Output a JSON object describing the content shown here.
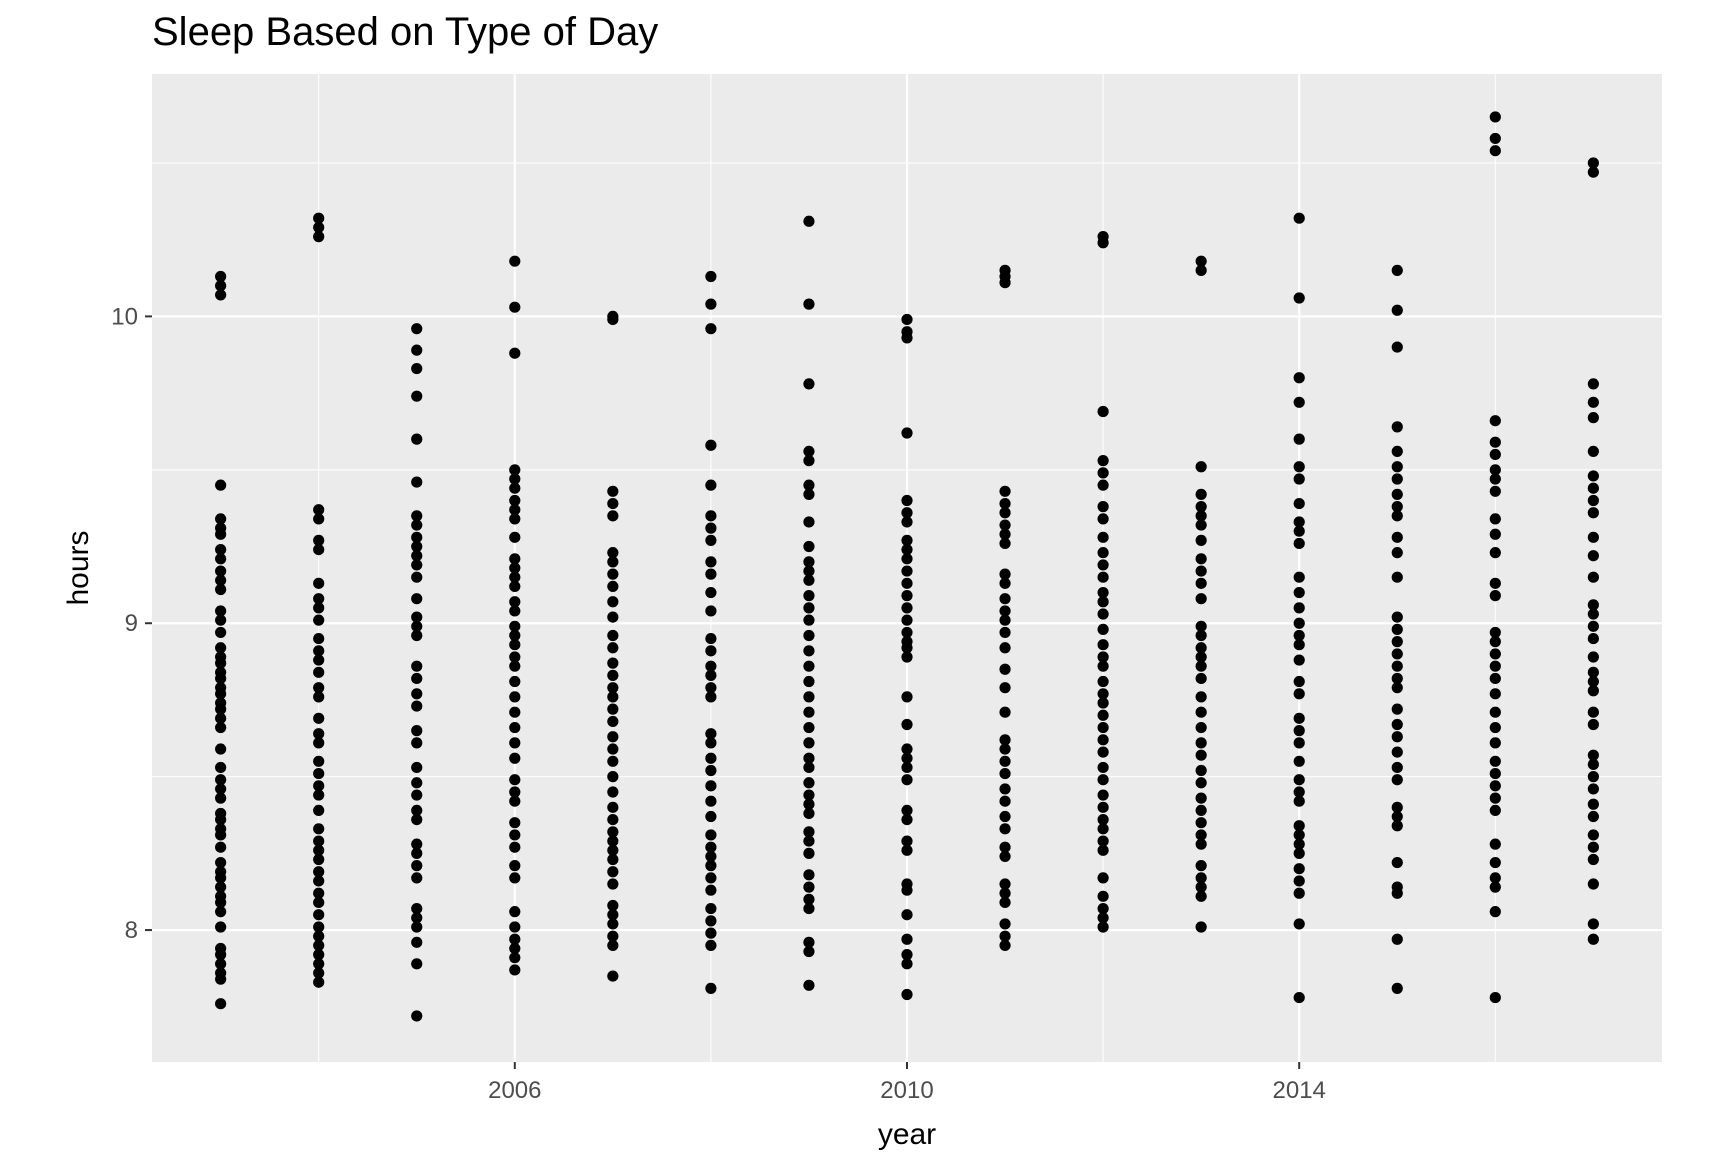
{
  "chart_data": {
    "type": "scatter",
    "title": "Sleep Based on Type of Day",
    "xlabel": "year",
    "ylabel": "hours",
    "xlim": [
      2002.3,
      2017.7
    ],
    "ylim": [
      7.57,
      10.79
    ],
    "xticks": [
      2006,
      2010,
      2014
    ],
    "xminor": [
      2004,
      2008,
      2012,
      2016
    ],
    "yticks": [
      8,
      9,
      10
    ],
    "yminor": [
      8.5,
      9.5,
      10.5
    ],
    "grid": true,
    "colors": {
      "panel": "#ebebeb",
      "grid": "#ffffff",
      "point": "#000000",
      "tick": "#4d4d4d"
    },
    "series": [
      {
        "x": 2003,
        "y": [
          7.76,
          7.84,
          7.86,
          7.89,
          7.92,
          7.94,
          8.01,
          8.06,
          8.09,
          8.11,
          8.14,
          8.17,
          8.19,
          8.22,
          8.27,
          8.31,
          8.33,
          8.36,
          8.38,
          8.43,
          8.46,
          8.49,
          8.53,
          8.59,
          8.66,
          8.69,
          8.72,
          8.74,
          8.77,
          8.79,
          8.82,
          8.84,
          8.87,
          8.89,
          8.92,
          8.97,
          9.01,
          9.04,
          9.11,
          9.14,
          9.17,
          9.21,
          9.24,
          9.29,
          9.31,
          9.34,
          9.45,
          10.07,
          10.1,
          10.13
        ]
      },
      {
        "x": 2004,
        "y": [
          7.83,
          7.86,
          7.89,
          7.92,
          7.95,
          7.98,
          8.01,
          8.05,
          8.09,
          8.12,
          8.16,
          8.19,
          8.23,
          8.26,
          8.29,
          8.33,
          8.39,
          8.44,
          8.47,
          8.51,
          8.55,
          8.61,
          8.64,
          8.69,
          8.76,
          8.79,
          8.84,
          8.88,
          8.91,
          8.95,
          9.01,
          9.05,
          9.08,
          9.13,
          9.24,
          9.27,
          9.34,
          9.37,
          10.26,
          10.29,
          10.32
        ]
      },
      {
        "x": 2005,
        "y": [
          7.72,
          7.89,
          7.96,
          8.01,
          8.04,
          8.07,
          8.17,
          8.21,
          8.25,
          8.28,
          8.36,
          8.39,
          8.44,
          8.48,
          8.53,
          8.61,
          8.65,
          8.73,
          8.77,
          8.82,
          8.86,
          8.96,
          8.99,
          9.02,
          9.08,
          9.15,
          9.19,
          9.22,
          9.25,
          9.28,
          9.32,
          9.35,
          9.46,
          9.6,
          9.74,
          9.83,
          9.89,
          9.96
        ]
      },
      {
        "x": 2006,
        "y": [
          7.87,
          7.91,
          7.94,
          7.97,
          8.01,
          8.06,
          8.17,
          8.21,
          8.27,
          8.31,
          8.35,
          8.42,
          8.45,
          8.49,
          8.56,
          8.61,
          8.66,
          8.71,
          8.76,
          8.81,
          8.86,
          8.89,
          8.93,
          8.96,
          8.99,
          9.04,
          9.07,
          9.12,
          9.15,
          9.18,
          9.21,
          9.28,
          9.34,
          9.37,
          9.4,
          9.44,
          9.47,
          9.5,
          9.88,
          10.03,
          10.18
        ]
      },
      {
        "x": 2007,
        "y": [
          7.85,
          7.95,
          7.98,
          8.02,
          8.05,
          8.08,
          8.15,
          8.19,
          8.23,
          8.26,
          8.29,
          8.32,
          8.36,
          8.4,
          8.45,
          8.5,
          8.55,
          8.59,
          8.63,
          8.68,
          8.72,
          8.76,
          8.79,
          8.83,
          8.87,
          8.92,
          8.96,
          9.02,
          9.07,
          9.12,
          9.16,
          9.2,
          9.23,
          9.35,
          9.39,
          9.43,
          9.99,
          10.0
        ]
      },
      {
        "x": 2008,
        "y": [
          7.81,
          7.95,
          7.99,
          8.03,
          8.07,
          8.13,
          8.17,
          8.21,
          8.24,
          8.27,
          8.31,
          8.37,
          8.42,
          8.47,
          8.52,
          8.56,
          8.61,
          8.64,
          8.76,
          8.79,
          8.83,
          8.86,
          8.91,
          8.95,
          9.04,
          9.1,
          9.16,
          9.2,
          9.27,
          9.31,
          9.35,
          9.45,
          9.58,
          9.96,
          10.04,
          10.13
        ]
      },
      {
        "x": 2009,
        "y": [
          7.82,
          7.93,
          7.96,
          8.07,
          8.1,
          8.14,
          8.18,
          8.25,
          8.29,
          8.32,
          8.38,
          8.41,
          8.44,
          8.48,
          8.53,
          8.56,
          8.61,
          8.66,
          8.71,
          8.76,
          8.81,
          8.86,
          8.91,
          8.96,
          9.01,
          9.05,
          9.09,
          9.14,
          9.17,
          9.2,
          9.25,
          9.33,
          9.42,
          9.45,
          9.53,
          9.56,
          9.78,
          10.04,
          10.31
        ]
      },
      {
        "x": 2010,
        "y": [
          7.79,
          7.89,
          7.92,
          7.97,
          8.05,
          8.13,
          8.15,
          8.26,
          8.29,
          8.36,
          8.39,
          8.49,
          8.53,
          8.56,
          8.59,
          8.67,
          8.76,
          8.89,
          8.92,
          8.94,
          8.97,
          9.01,
          9.05,
          9.09,
          9.13,
          9.17,
          9.21,
          9.24,
          9.27,
          9.33,
          9.36,
          9.4,
          9.62,
          9.93,
          9.95,
          9.99
        ]
      },
      {
        "x": 2011,
        "y": [
          7.95,
          7.98,
          8.02,
          8.09,
          8.12,
          8.15,
          8.24,
          8.27,
          8.33,
          8.37,
          8.42,
          8.46,
          8.51,
          8.55,
          8.59,
          8.62,
          8.71,
          8.79,
          8.85,
          8.92,
          8.97,
          9.01,
          9.04,
          9.08,
          9.13,
          9.16,
          9.26,
          9.29,
          9.32,
          9.36,
          9.39,
          9.43,
          10.11,
          10.13,
          10.15
        ]
      },
      {
        "x": 2012,
        "y": [
          8.01,
          8.04,
          8.07,
          8.11,
          8.17,
          8.26,
          8.29,
          8.33,
          8.36,
          8.4,
          8.44,
          8.49,
          8.53,
          8.58,
          8.62,
          8.66,
          8.7,
          8.74,
          8.77,
          8.81,
          8.86,
          8.89,
          8.93,
          8.98,
          9.03,
          9.07,
          9.1,
          9.15,
          9.19,
          9.23,
          9.28,
          9.34,
          9.38,
          9.45,
          9.49,
          9.53,
          9.69,
          10.24,
          10.26
        ]
      },
      {
        "x": 2013,
        "y": [
          8.01,
          8.11,
          8.14,
          8.17,
          8.21,
          8.28,
          8.31,
          8.35,
          8.39,
          8.43,
          8.48,
          8.52,
          8.57,
          8.61,
          8.66,
          8.71,
          8.76,
          8.82,
          8.86,
          8.89,
          8.92,
          8.96,
          8.99,
          9.08,
          9.13,
          9.17,
          9.21,
          9.27,
          9.32,
          9.35,
          9.38,
          9.42,
          9.51,
          10.15,
          10.18
        ]
      },
      {
        "x": 2014,
        "y": [
          7.78,
          8.02,
          8.12,
          8.16,
          8.2,
          8.25,
          8.28,
          8.31,
          8.34,
          8.42,
          8.45,
          8.49,
          8.55,
          8.61,
          8.65,
          8.69,
          8.77,
          8.81,
          8.88,
          8.93,
          8.96,
          9.0,
          9.05,
          9.1,
          9.15,
          9.26,
          9.3,
          9.33,
          9.39,
          9.47,
          9.51,
          9.6,
          9.72,
          9.8,
          10.06,
          10.32
        ]
      },
      {
        "x": 2015,
        "y": [
          7.81,
          7.97,
          8.12,
          8.14,
          8.22,
          8.34,
          8.37,
          8.4,
          8.49,
          8.53,
          8.58,
          8.63,
          8.67,
          8.72,
          8.79,
          8.82,
          8.86,
          8.9,
          8.94,
          8.98,
          9.02,
          9.15,
          9.23,
          9.28,
          9.35,
          9.38,
          9.42,
          9.47,
          9.51,
          9.56,
          9.64,
          9.9,
          10.02,
          10.15
        ]
      },
      {
        "x": 2016,
        "y": [
          7.78,
          8.06,
          8.14,
          8.17,
          8.22,
          8.28,
          8.39,
          8.43,
          8.47,
          8.51,
          8.55,
          8.61,
          8.66,
          8.71,
          8.77,
          8.82,
          8.86,
          8.9,
          8.94,
          8.97,
          9.09,
          9.13,
          9.23,
          9.29,
          9.34,
          9.43,
          9.47,
          9.5,
          9.55,
          9.59,
          9.66,
          10.54,
          10.58,
          10.65
        ]
      },
      {
        "x": 2017,
        "y": [
          7.97,
          8.02,
          8.15,
          8.23,
          8.27,
          8.31,
          8.37,
          8.41,
          8.46,
          8.5,
          8.54,
          8.57,
          8.67,
          8.71,
          8.78,
          8.81,
          8.84,
          8.89,
          8.95,
          8.99,
          9.03,
          9.06,
          9.15,
          9.22,
          9.28,
          9.36,
          9.4,
          9.44,
          9.48,
          9.56,
          9.67,
          9.72,
          9.78,
          10.47,
          10.5
        ]
      }
    ]
  }
}
